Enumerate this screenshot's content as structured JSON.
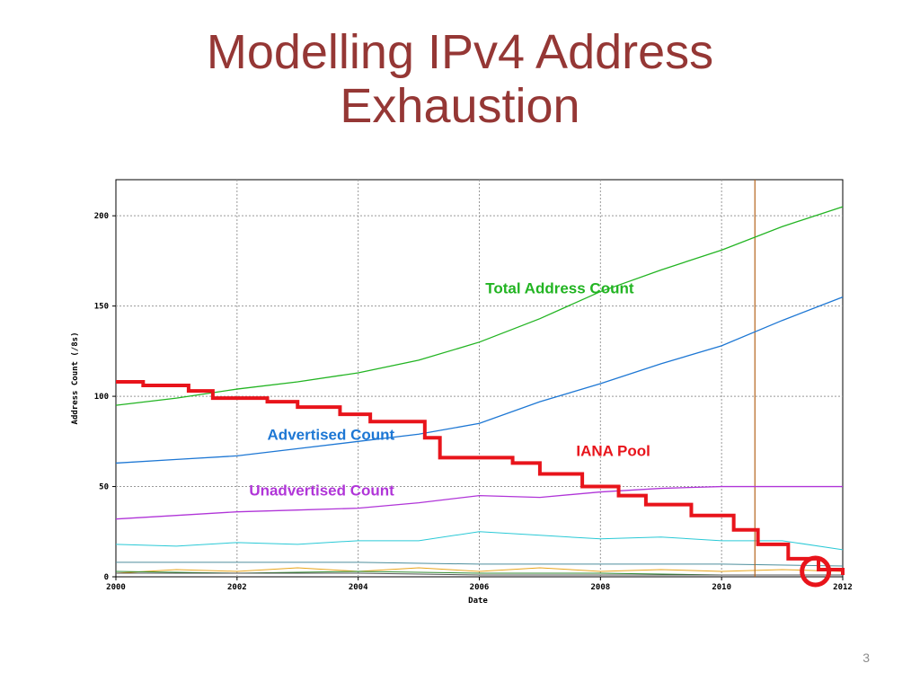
{
  "slide": {
    "title_line1": "Modelling IPv4 Address",
    "title_line2": "Exhaustion",
    "number": "3"
  },
  "chart_data": {
    "type": "line",
    "xlabel": "Date",
    "ylabel": "Address Count (/8s)",
    "xlim": [
      2000,
      2012
    ],
    "ylim": [
      0,
      220
    ],
    "xticks": [
      "2000",
      "2002",
      "2004",
      "2006",
      "2008",
      "2010",
      "2012"
    ],
    "yticks": [
      "0",
      "50",
      "100",
      "150",
      "200"
    ],
    "grid": "dotted horizontal and vertical",
    "vertical_marker_x": 2010.55,
    "highlight_circle": {
      "x": 2011.55,
      "y": 2
    },
    "series": [
      {
        "name": "Total Address Count",
        "color": "#22b422",
        "label_at": [
          2006.1,
          157
        ],
        "x": [
          2000,
          2001,
          2002,
          2003,
          2004,
          2005,
          2006,
          2007,
          2008,
          2009,
          2010,
          2011,
          2012
        ],
        "values": [
          95,
          99,
          104,
          108,
          113,
          120,
          130,
          143,
          158,
          170,
          181,
          194,
          205
        ]
      },
      {
        "name": "Advertised Count",
        "color": "#1d77d4",
        "label_at": [
          2002.5,
          76
        ],
        "x": [
          2000,
          2001,
          2002,
          2003,
          2004,
          2005,
          2006,
          2007,
          2008,
          2009,
          2010,
          2011,
          2012
        ],
        "values": [
          63,
          65,
          67,
          71,
          75,
          79,
          85,
          97,
          107,
          118,
          128,
          142,
          155
        ]
      },
      {
        "name": "Unadvertised Count",
        "color": "#b035d8",
        "label_at": [
          2002.2,
          45
        ],
        "x": [
          2000,
          2001,
          2002,
          2003,
          2004,
          2005,
          2006,
          2007,
          2008,
          2009,
          2010,
          2011,
          2012
        ],
        "values": [
          32,
          34,
          36,
          37,
          38,
          41,
          45,
          44,
          47,
          49,
          50,
          50,
          50
        ]
      },
      {
        "name": "IANA Pool",
        "color": "#e8141b",
        "step": true,
        "label_at": [
          2007.6,
          67
        ],
        "x": [
          2000,
          2000.45,
          2001.2,
          2001.6,
          2002.5,
          2003.0,
          2003.7,
          2004.2,
          2005.1,
          2005.35,
          2006.55,
          2007.0,
          2007.7,
          2008.3,
          2008.75,
          2009.5,
          2010.2,
          2010.6,
          2011.1,
          2011.6,
          2012
        ],
        "values": [
          108,
          106,
          103,
          99,
          97,
          94,
          90,
          86,
          77,
          66,
          63,
          57,
          50,
          45,
          40,
          34,
          26,
          18,
          10,
          4,
          1
        ]
      }
    ],
    "unlabeled_series": [
      {
        "color": "#2ac9d6",
        "x": [
          2000,
          2001,
          2002,
          2003,
          2004,
          2005,
          2006,
          2007,
          2008,
          2009,
          2010,
          2011,
          2012
        ],
        "values": [
          18,
          17,
          19,
          18,
          20,
          20,
          25,
          23,
          21,
          22,
          20,
          20,
          15
        ]
      },
      {
        "color": "#4d8e9c",
        "x": [
          2000,
          2002,
          2004,
          2006,
          2008,
          2010,
          2012
        ],
        "values": [
          8,
          8,
          8,
          7,
          7,
          7,
          6
        ]
      },
      {
        "color": "#e8a51a",
        "x": [
          2000,
          2001,
          2002,
          2003,
          2004,
          2005,
          2006,
          2007,
          2008,
          2009,
          2010,
          2011,
          2012
        ],
        "values": [
          2,
          4,
          3,
          5,
          3,
          5,
          3,
          5,
          3,
          4,
          3,
          4,
          3
        ]
      },
      {
        "color": "#2f8a2f",
        "x": [
          2000,
          2002,
          2004,
          2006,
          2008,
          2010,
          2012
        ],
        "values": [
          3,
          2,
          3,
          2,
          2,
          1,
          1
        ]
      },
      {
        "color": "#555555",
        "x": [
          2000,
          2002,
          2004,
          2006,
          2008,
          2010,
          2012
        ],
        "values": [
          2,
          2,
          2,
          1,
          1,
          1,
          1
        ]
      }
    ]
  }
}
